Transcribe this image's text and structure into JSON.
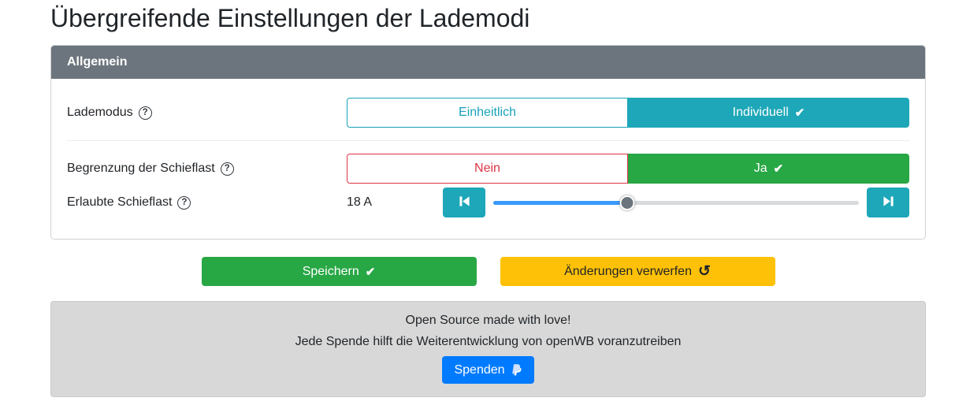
{
  "title": "Übergreifende Einstellungen der Lademodi",
  "icons": {
    "help": "?",
    "check": "✔",
    "undo": "↺"
  },
  "colors": {
    "teal_active": "#1da7b8",
    "green_active": "#28a745",
    "red_outline": "#dc3545",
    "yellow_warning": "#ffc107",
    "blue_primary": "#007bff",
    "header_gray": "#6c757d",
    "slider_fill_blue": "#3b99fc",
    "footer_gray": "#d8d8d8"
  },
  "card": {
    "header": "Allgemein",
    "lademodus": {
      "label": "Lademodus",
      "option_left": "Einheitlich",
      "option_right": "Individuell",
      "selected": "Individuell"
    },
    "schieflast_toggle": {
      "label": "Begrenzung der Schieflast",
      "option_left": "Nein",
      "option_right": "Ja",
      "selected": "Ja"
    },
    "schieflast_slider": {
      "label": "Erlaubte Schieflast",
      "value": "18 A",
      "percent": 36.7
    }
  },
  "actions": {
    "save": "Speichern",
    "discard": "Änderungen verwerfen"
  },
  "footer": {
    "line1": "Open Source made with love!",
    "line2": "Jede Spende hilft die Weiterentwicklung von openWB voranzutreiben",
    "donate": "Spenden"
  }
}
